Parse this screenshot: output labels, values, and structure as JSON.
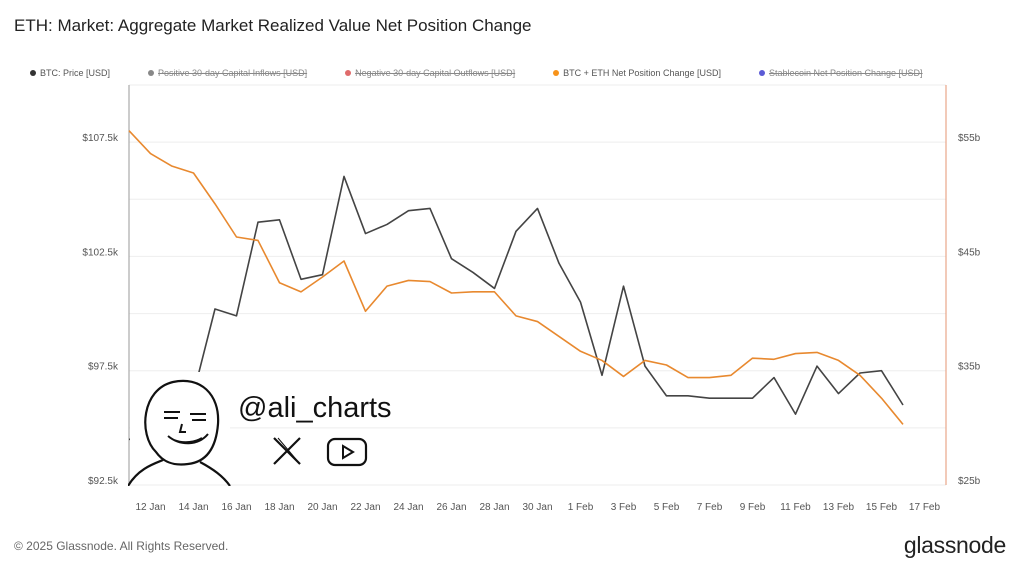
{
  "title": "ETH: Market: Aggregate Market Realized Value Net Position Change",
  "legend": [
    {
      "label": "BTC: Price [USD]",
      "color": "#333333",
      "enabled": true
    },
    {
      "label": "Positive 30-day Capital Inflows [USD]",
      "color": "#888888",
      "enabled": false
    },
    {
      "label": "Negative 30-day Capital Outflows [USD]",
      "color": "#e06b6b",
      "enabled": false
    },
    {
      "label": "BTC + ETH Net Position Change [USD]",
      "color": "#f7931a",
      "enabled": true
    },
    {
      "label": "Stablecoin Net Position Change [USD]",
      "color": "#5b5bd6",
      "enabled": false
    }
  ],
  "footer": "© 2025 Glassnode. All Rights Reserved.",
  "brand": "glassnode",
  "watermark": {
    "handle": "@ali_charts",
    "icons": [
      "x-logo-icon",
      "youtube-icon"
    ]
  },
  "chart_data": {
    "type": "line",
    "title": "ETH: Market: Aggregate Market Realized Value Net Position Change",
    "x": [
      "11 Jan",
      "12 Jan",
      "13 Jan",
      "14 Jan",
      "15 Jan",
      "16 Jan",
      "17 Jan",
      "18 Jan",
      "19 Jan",
      "20 Jan",
      "21 Jan",
      "22 Jan",
      "23 Jan",
      "24 Jan",
      "25 Jan",
      "26 Jan",
      "27 Jan",
      "28 Jan",
      "29 Jan",
      "30 Jan",
      "31 Jan",
      "1 Feb",
      "2 Feb",
      "3 Feb",
      "4 Feb",
      "5 Feb",
      "6 Feb",
      "7 Feb",
      "8 Feb",
      "9 Feb",
      "10 Feb",
      "11 Feb",
      "12 Feb",
      "13 Feb",
      "14 Feb",
      "15 Feb",
      "16 Feb"
    ],
    "x_tick_labels": [
      "12 Jan",
      "14 Jan",
      "16 Jan",
      "18 Jan",
      "20 Jan",
      "22 Jan",
      "24 Jan",
      "26 Jan",
      "28 Jan",
      "30 Jan",
      "1 Feb",
      "3 Feb",
      "5 Feb",
      "7 Feb",
      "9 Feb",
      "11 Feb",
      "13 Feb",
      "15 Feb",
      "17 Feb"
    ],
    "y_left": {
      "ticks": [
        "$92.5k",
        "$97.5k",
        "$102.5k",
        "$107.5k"
      ],
      "range": [
        92.5,
        110
      ],
      "unit": "k USD"
    },
    "y_right": {
      "ticks": [
        "$25b",
        "$35b",
        "$45b",
        "$55b"
      ],
      "range": [
        25,
        60
      ],
      "unit": "b USD"
    },
    "grid": true,
    "legend_position": "top",
    "series": [
      {
        "name": "BTC: Price [USD]",
        "axis": "left",
        "color": "#444444",
        "values": [
          94.5,
          94.5,
          94.5,
          96.5,
          100.2,
          99.9,
          104.0,
          104.1,
          101.5,
          101.7,
          106.0,
          103.5,
          103.9,
          104.5,
          104.6,
          102.4,
          101.8,
          101.1,
          103.6,
          104.6,
          102.2,
          100.5,
          97.3,
          101.2,
          97.7,
          96.4,
          96.4,
          96.3,
          96.3,
          96.3,
          97.2,
          95.6,
          97.7,
          96.5,
          97.4,
          97.5,
          96.0
        ]
      },
      {
        "name": "BTC + ETH Net Position Change [USD]",
        "axis": "right",
        "color": "#e8892f",
        "values": [
          56.0,
          54.0,
          52.9,
          52.3,
          49.6,
          46.7,
          46.4,
          42.7,
          41.9,
          43.2,
          44.6,
          40.2,
          42.4,
          42.9,
          42.8,
          41.8,
          41.9,
          41.9,
          39.8,
          39.3,
          38.0,
          36.7,
          35.9,
          34.5,
          35.9,
          35.5,
          34.4,
          34.4,
          34.6,
          36.1,
          36.0,
          36.5,
          36.6,
          35.9,
          34.6,
          32.6,
          30.3
        ]
      }
    ]
  }
}
